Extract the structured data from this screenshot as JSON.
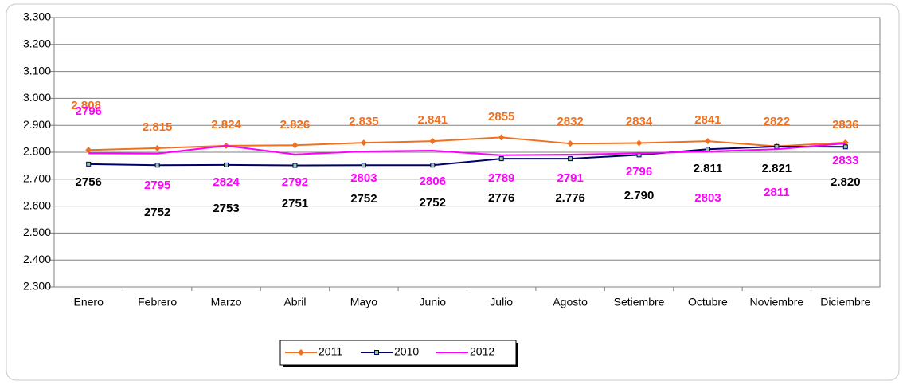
{
  "chart_data": {
    "type": "line",
    "categories": [
      "Enero",
      "Febrero",
      "Marzo",
      "Abril",
      "Mayo",
      "Junio",
      "Julio",
      "Agosto",
      "Setiembre",
      "Octubre",
      "Noviembre",
      "Diciembre"
    ],
    "series": [
      {
        "name": "2011",
        "color": "#f07020",
        "marker": "diamond",
        "values": [
          2808,
          2815,
          2824,
          2826,
          2835,
          2841,
          2855,
          2832,
          2834,
          2841,
          2822,
          2836
        ],
        "value_labels": [
          "2.808",
          "2.815",
          "2.824",
          "2.826",
          "2.835",
          "2.841",
          "2855",
          "2832",
          "2834",
          "2841",
          "2822",
          "2836"
        ]
      },
      {
        "name": "2010",
        "color": "#000066",
        "marker": "square",
        "values": [
          2756,
          2752,
          2753,
          2751,
          2752,
          2752,
          2776,
          2776,
          2790,
          2811,
          2821,
          2820
        ],
        "value_labels": [
          "2756",
          "2752",
          "2753",
          "2751",
          "2752",
          "2752",
          "2776",
          "2.776",
          "2.790",
          "2.811",
          "2.821",
          "2.820"
        ]
      },
      {
        "name": "2012",
        "color": "#ff00ff",
        "marker": "none",
        "values": [
          2796,
          2795,
          2824,
          2792,
          2803,
          2806,
          2789,
          2791,
          2796,
          2803,
          2811,
          2833
        ],
        "value_labels": [
          "2796",
          "2795",
          "2824",
          "2792",
          "2803",
          "2806",
          "2789",
          "2791",
          "2796",
          "2803",
          "2811",
          "2833"
        ]
      }
    ],
    "ylim": [
      2300,
      3300
    ],
    "yticks": [
      {
        "value": 2300,
        "label": "2.300"
      },
      {
        "value": 2400,
        "label": "2.400"
      },
      {
        "value": 2500,
        "label": "2.500"
      },
      {
        "value": 2600,
        "label": "2.600"
      },
      {
        "value": 2700,
        "label": "2.700"
      },
      {
        "value": 2800,
        "label": "2.800"
      },
      {
        "value": 2900,
        "label": "2.900"
      },
      {
        "value": 3000,
        "label": "3.000"
      },
      {
        "value": 3100,
        "label": "3.100"
      },
      {
        "value": 3200,
        "label": "3.200"
      },
      {
        "value": 3300,
        "label": "3.300"
      }
    ],
    "grid": true,
    "legend": "bottom"
  }
}
